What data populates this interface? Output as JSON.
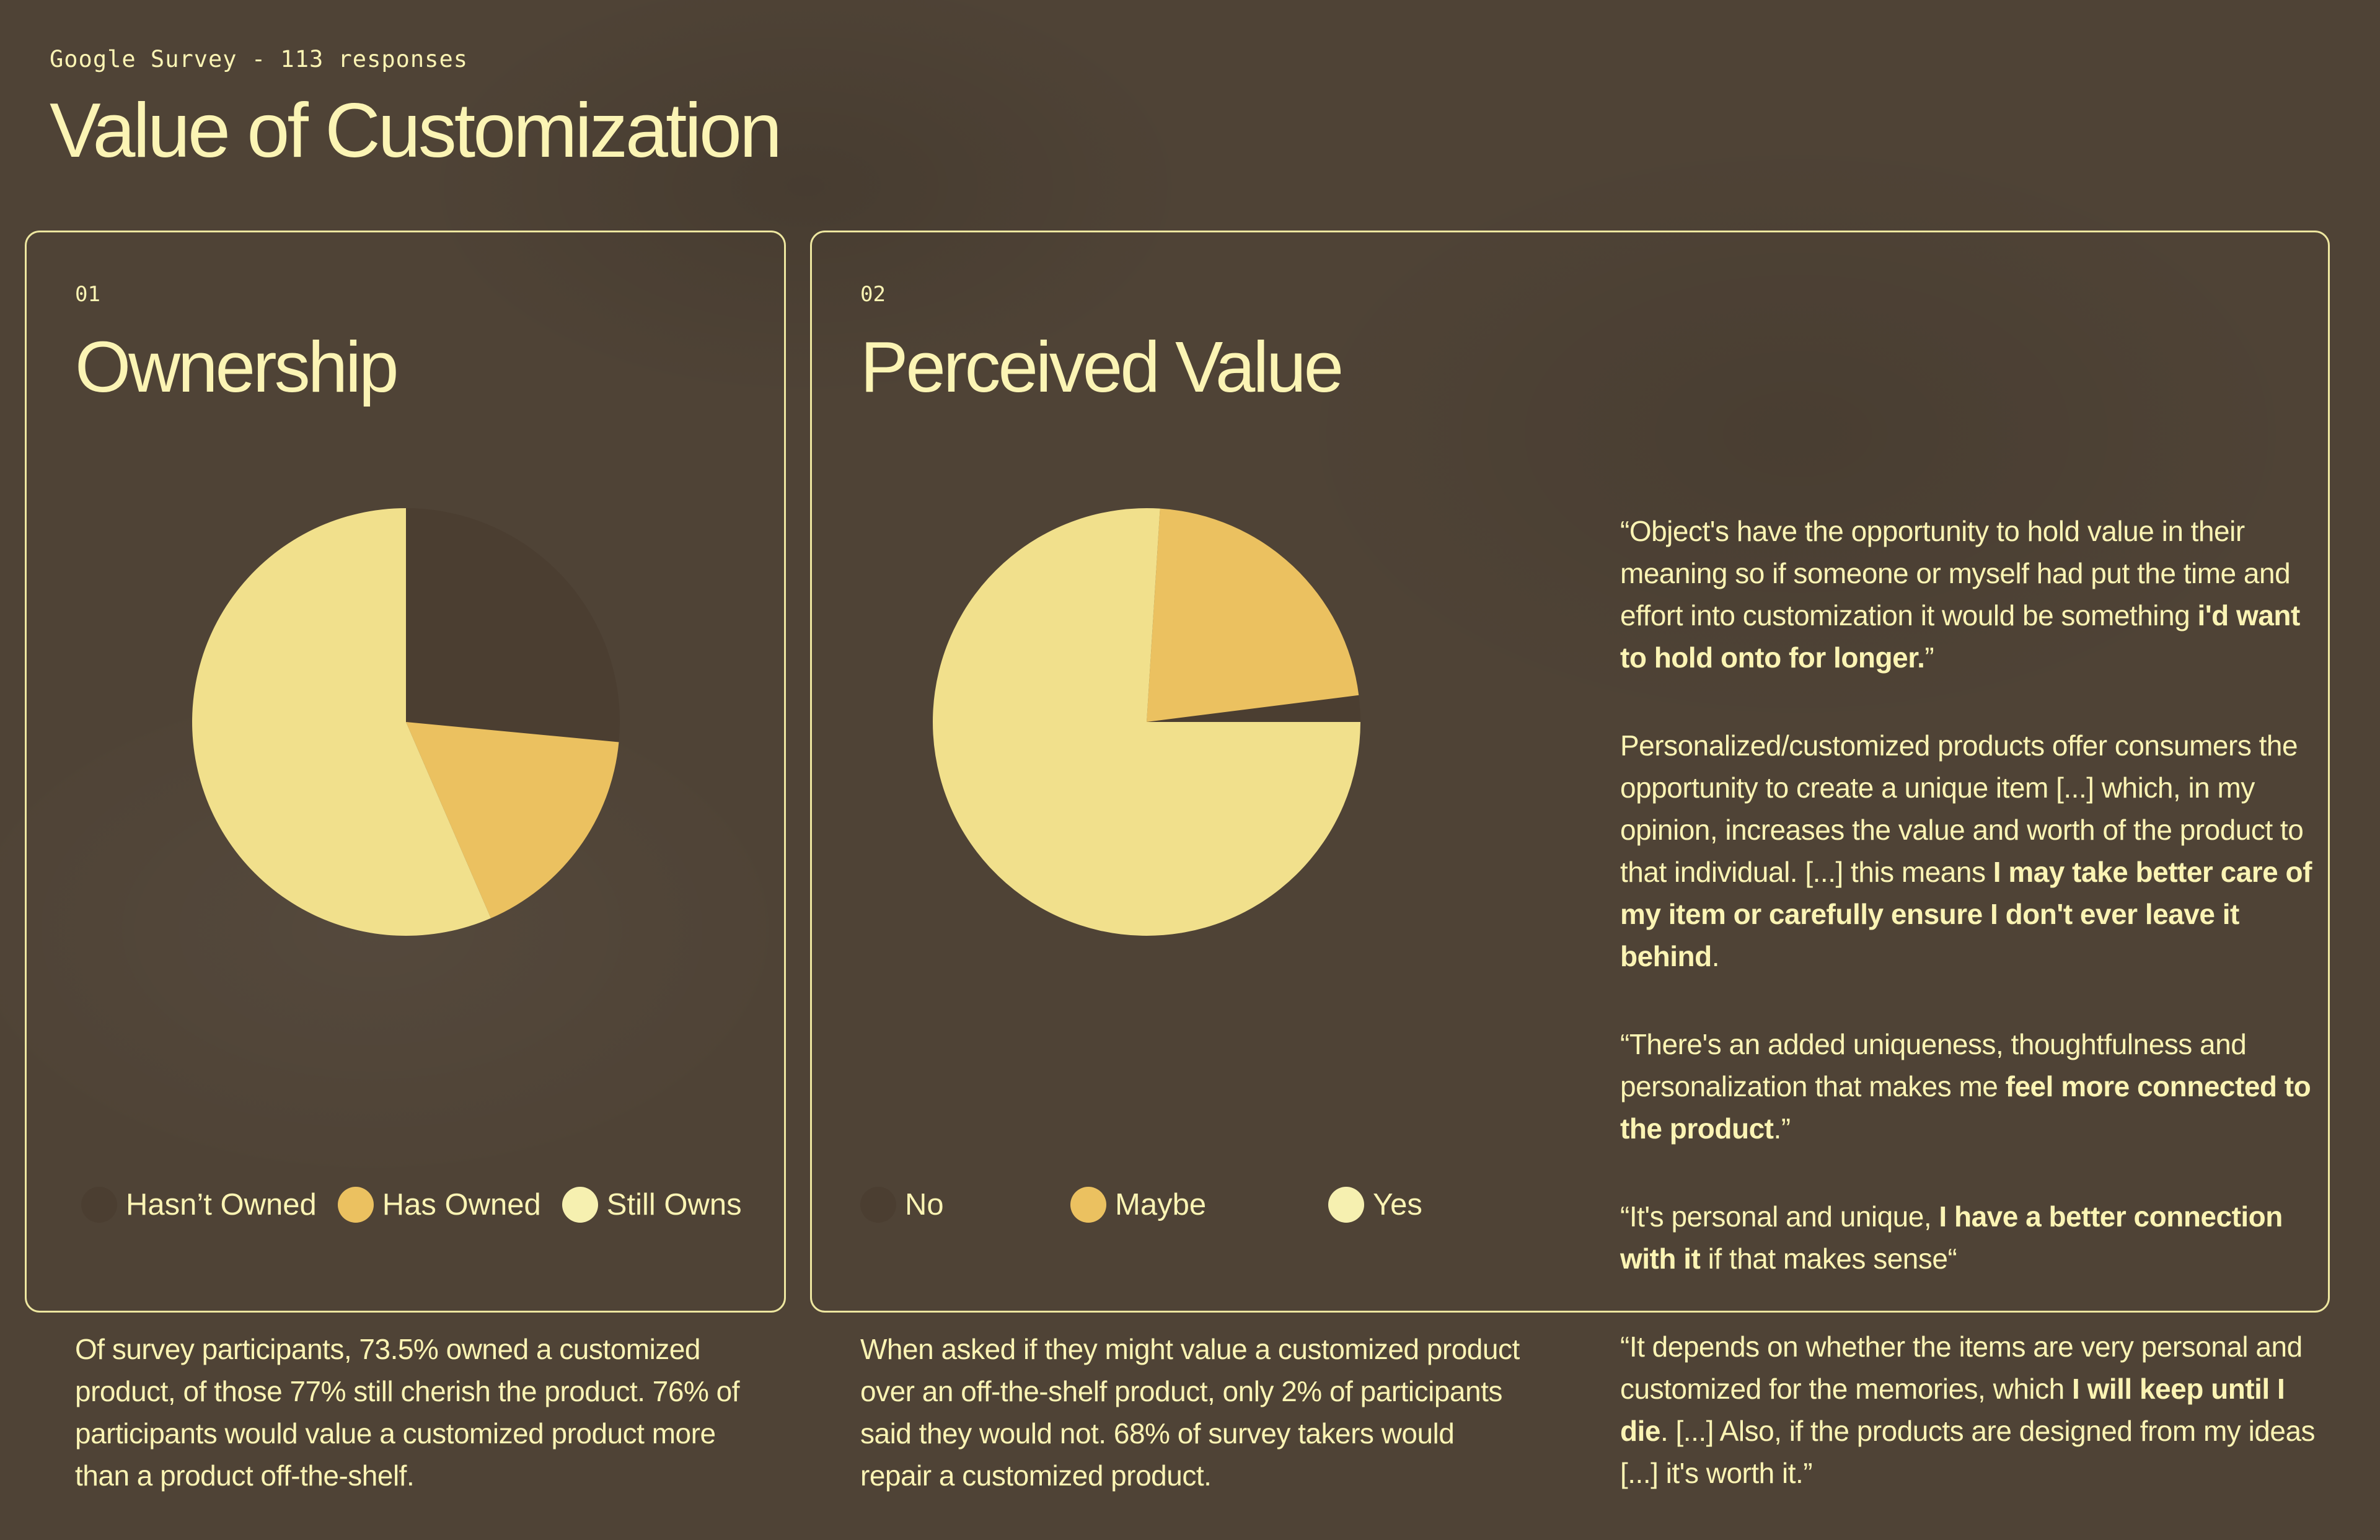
{
  "header": {
    "eyebrow": "Google Survey - 113 responses",
    "title": "Value of Customization"
  },
  "colors": {
    "background": "#4f4336",
    "text": "#fbf4b4",
    "border": "#eee7a0",
    "slice_dark": "#4b3e31",
    "slice_mid": "#ebc160",
    "slice_light": "#f1e08c",
    "legend_light": "#f6f0b0"
  },
  "ownership": {
    "number": "01",
    "title": "Ownership",
    "summary": "Of survey participants, 73.5% owned a customized product, of those 77% still cherish the product. 76% of participants would value a customized product more than a product off-the-shelf."
  },
  "perceived": {
    "number": "02",
    "title": "Perceived Value",
    "summary": "When asked if they might value a customized product over an off-the-shelf product, only 2% of participants said they would not. 68% of survey takers would repair a customized product."
  },
  "quotes": [
    {
      "pre": "“Object's have the opportunity to hold value in their meaning so if someone or myself had put the time and effort into customization it would be something ",
      "bold": "i'd want to hold onto for longer.",
      "post": "”"
    },
    {
      "pre": "Personalized/customized products offer consumers the opportunity to create a unique item [...] which, in my opinion, increases the value and worth of the product to that individual. [...] this means ",
      "bold": "I may take better care of my item or carefully ensure I don't ever leave it behind",
      "post": "."
    },
    {
      "pre": "“There's an added uniqueness, thoughtfulness and personalization that makes me ",
      "bold": "feel more connected to the product",
      "post": ".”"
    },
    {
      "pre": "“It's personal and unique, ",
      "bold": "I have a better connection with it",
      "post": " if that makes sense“"
    },
    {
      "pre": "“It depends on whether the items are very personal and customized for the memories, which ",
      "bold": "I will keep until I die",
      "post": ". [...] Also, if the products are designed from my ideas [...] it's worth it.”"
    }
  ],
  "chart_data": [
    {
      "type": "pie",
      "title": "Ownership",
      "categories": [
        "Hasn’t Owned",
        "Has Owned",
        "Still Owns"
      ],
      "values": [
        26.5,
        17,
        56.5
      ],
      "colors": [
        "#4b3e31",
        "#ebc160",
        "#f1e08c"
      ],
      "legend_colors": [
        "#4b3e31",
        "#ebc160",
        "#f6f0b0"
      ],
      "start_angle_deg": 90,
      "direction": "clockwise"
    },
    {
      "type": "pie",
      "title": "Perceived Value",
      "categories": [
        "No",
        "Maybe",
        "Yes"
      ],
      "values": [
        2,
        22,
        76
      ],
      "colors": [
        "#4b3e31",
        "#ebc160",
        "#f1e08c"
      ],
      "legend_colors": [
        "#4b3e31",
        "#ebc160",
        "#f6f0b0"
      ],
      "start_angle_deg": 0,
      "direction": "counterclockwise"
    }
  ]
}
